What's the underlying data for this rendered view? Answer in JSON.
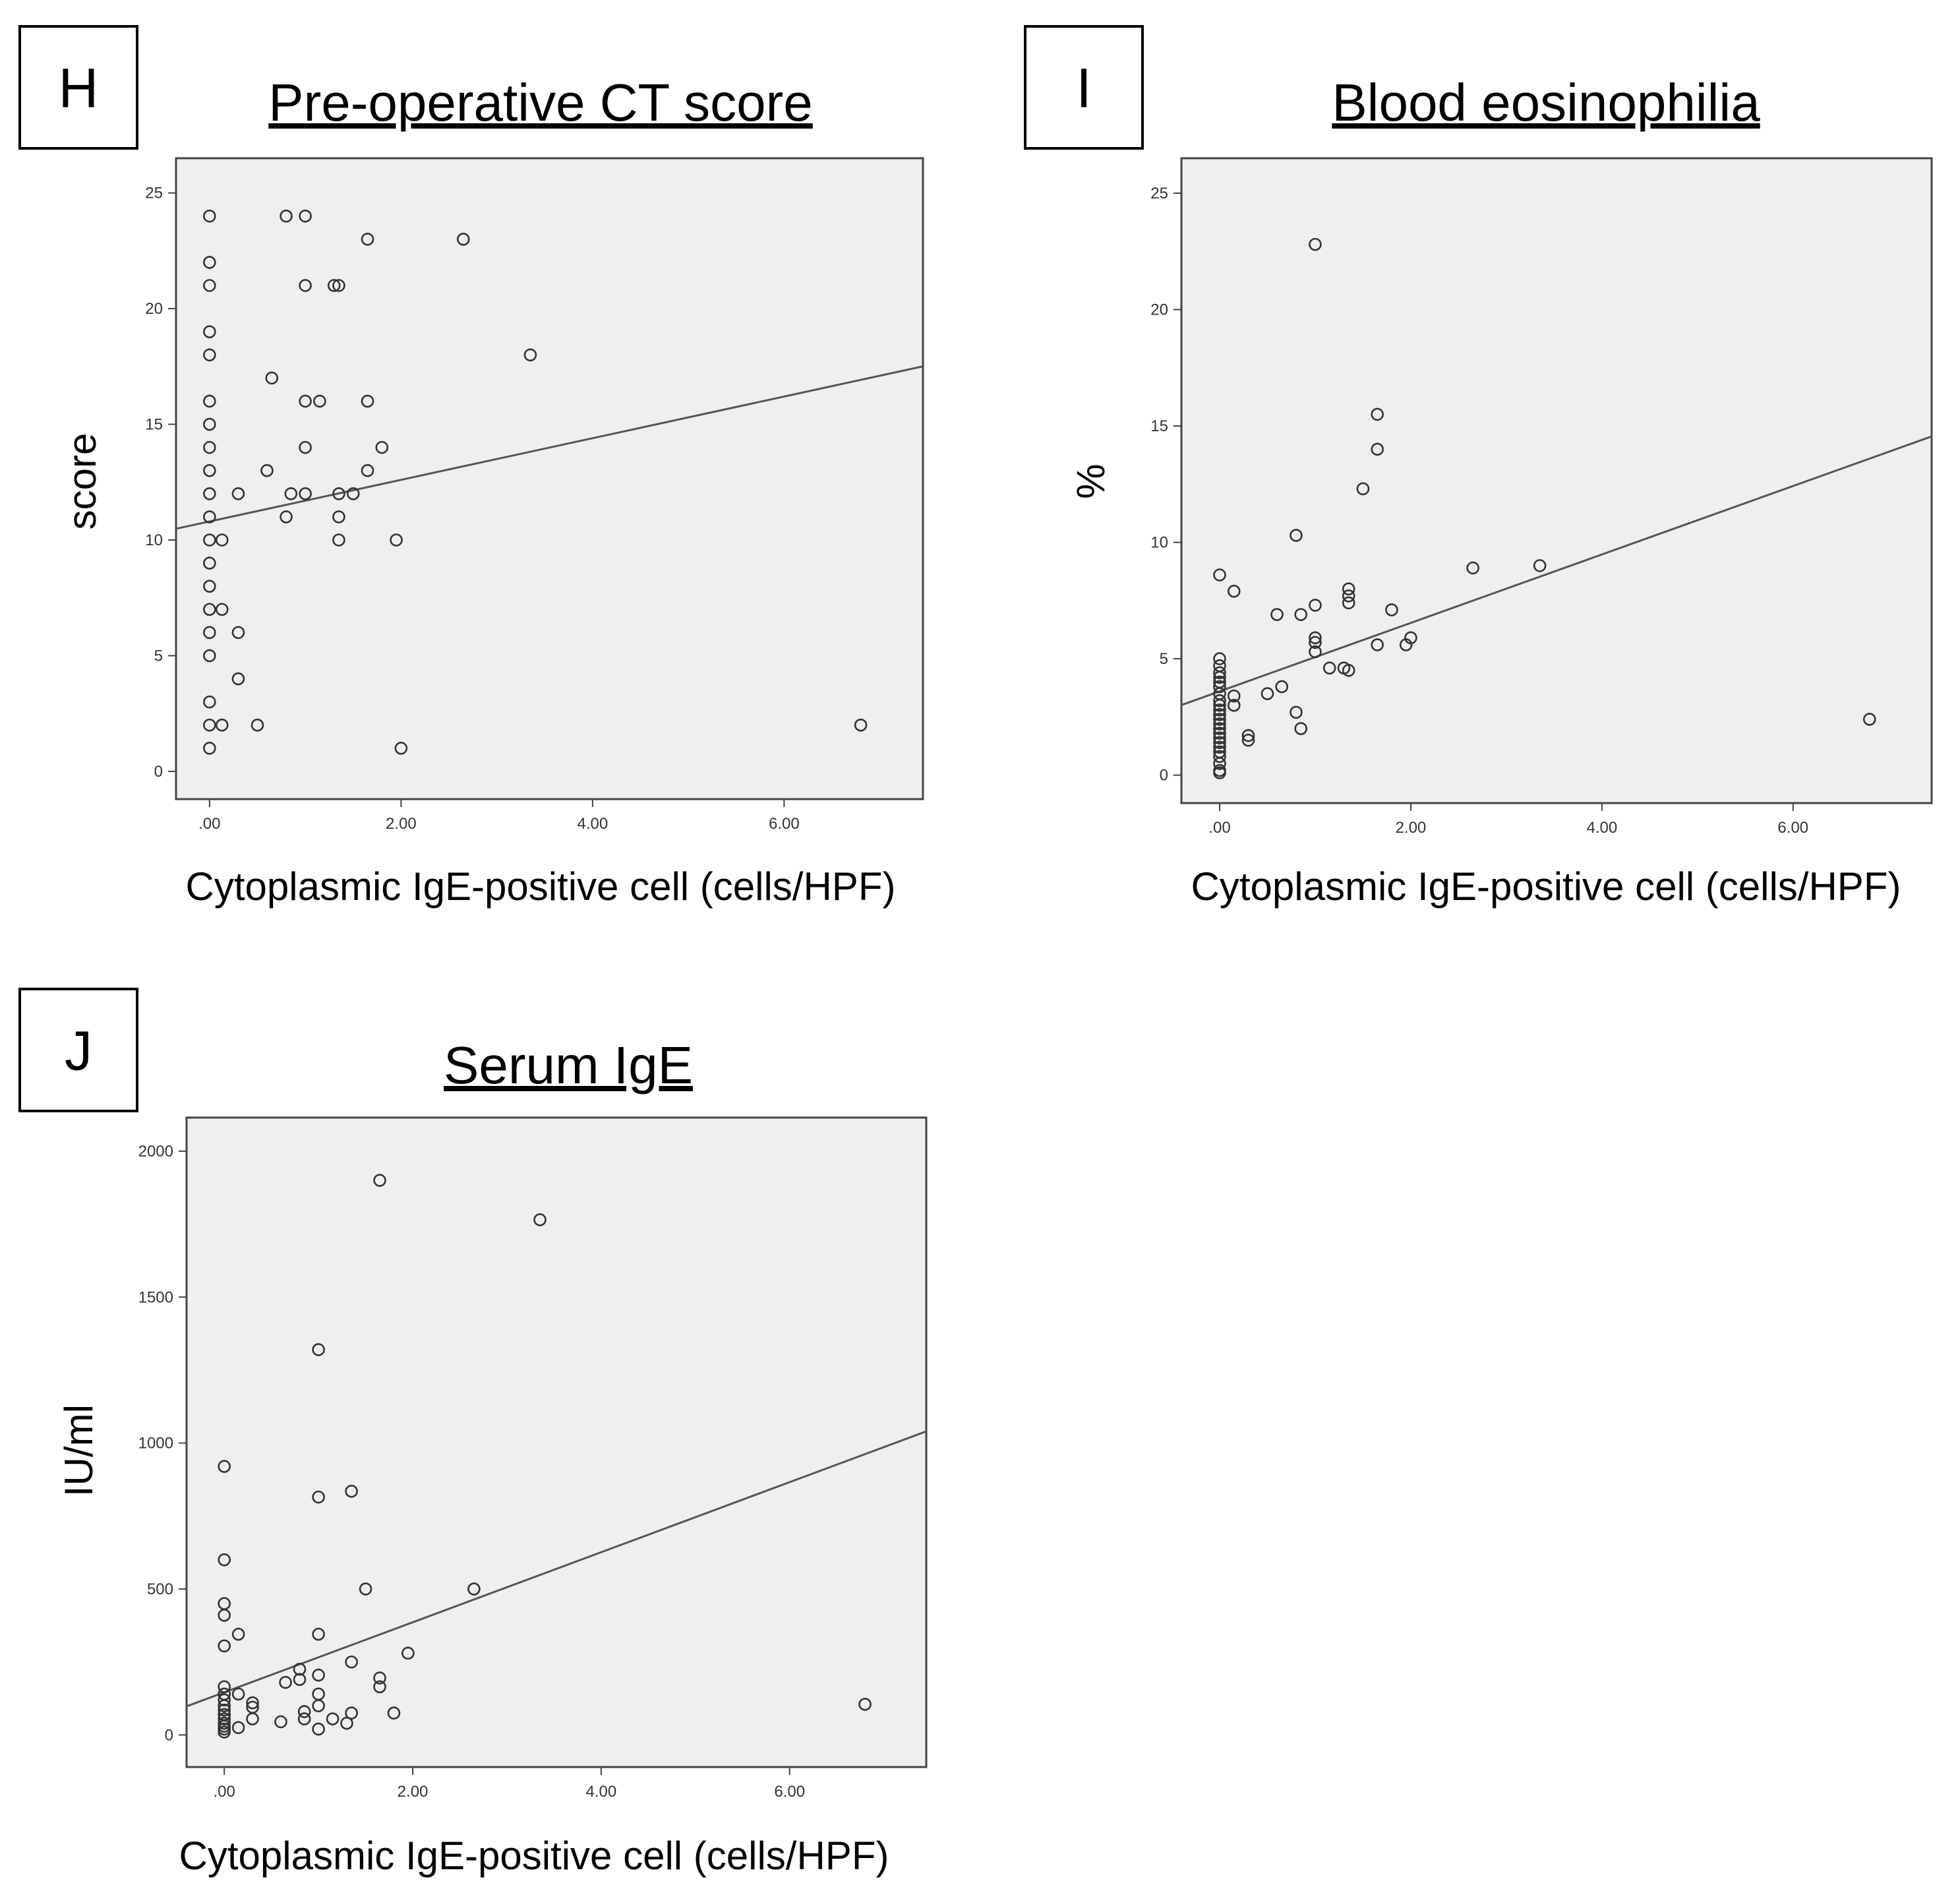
{
  "chart_data": [
    {
      "panel": "H",
      "type": "scatter",
      "title": "Pre-operative CT score",
      "xlabel": "Cytoplasmic IgE-positive cell (cells/HPF)",
      "ylabel": "score",
      "xlim": [
        -0.35,
        7.45
      ],
      "ylim": [
        -1.2,
        26.5
      ],
      "xticks": [
        0,
        2,
        4,
        6
      ],
      "xtick_labels": [
        ".00",
        "2.00",
        "4.00",
        "6.00"
      ],
      "yticks": [
        0,
        5,
        10,
        15,
        20,
        25
      ],
      "ytick_labels": [
        "0",
        "5",
        "10",
        "15",
        "20",
        "25"
      ],
      "fit_line": {
        "intercept": 10.8,
        "slope": 0.9
      },
      "points": [
        [
          0,
          24
        ],
        [
          0,
          22
        ],
        [
          0,
          21
        ],
        [
          0,
          19
        ],
        [
          0,
          18
        ],
        [
          0,
          16
        ],
        [
          0,
          15
        ],
        [
          0,
          14
        ],
        [
          0,
          13
        ],
        [
          0,
          12
        ],
        [
          0,
          11
        ],
        [
          0,
          10
        ],
        [
          0,
          9
        ],
        [
          0,
          8
        ],
        [
          0,
          7
        ],
        [
          0,
          6
        ],
        [
          0,
          5
        ],
        [
          0,
          3
        ],
        [
          0,
          2
        ],
        [
          0,
          1
        ],
        [
          0.13,
          10
        ],
        [
          0.13,
          7
        ],
        [
          0.13,
          2
        ],
        [
          0.3,
          12
        ],
        [
          0.3,
          6
        ],
        [
          0.3,
          4
        ],
        [
          0.5,
          2
        ],
        [
          0.6,
          13
        ],
        [
          0.65,
          17
        ],
        [
          0.8,
          24
        ],
        [
          0.8,
          11
        ],
        [
          0.85,
          12
        ],
        [
          1.0,
          24
        ],
        [
          1.0,
          21
        ],
        [
          1.0,
          16
        ],
        [
          1.0,
          14
        ],
        [
          1.0,
          12
        ],
        [
          1.15,
          16
        ],
        [
          1.3,
          21
        ],
        [
          1.35,
          21
        ],
        [
          1.35,
          12
        ],
        [
          1.35,
          11
        ],
        [
          1.35,
          10
        ],
        [
          1.5,
          12
        ],
        [
          1.65,
          23
        ],
        [
          1.65,
          16
        ],
        [
          1.65,
          13
        ],
        [
          1.8,
          14
        ],
        [
          1.95,
          10
        ],
        [
          2.0,
          1
        ],
        [
          2.65,
          23
        ],
        [
          3.35,
          18
        ],
        [
          6.8,
          2
        ]
      ]
    },
    {
      "panel": "I",
      "type": "scatter",
      "title": "Blood eosinophilia",
      "xlabel": "Cytoplasmic IgE-positive cell (cells/HPF)",
      "ylabel": "%",
      "xlim": [
        -0.4,
        7.45
      ],
      "ylim": [
        -1.2,
        26.5
      ],
      "xticks": [
        0,
        2,
        4,
        6
      ],
      "xtick_labels": [
        ".00",
        "2.00",
        "4.00",
        "6.00"
      ],
      "yticks": [
        0,
        5,
        10,
        15,
        20,
        25
      ],
      "ytick_labels": [
        "0",
        "5",
        "10",
        "15",
        "20",
        "25"
      ],
      "fit_line": {
        "intercept": 3.6,
        "slope": 1.47
      },
      "points": [
        [
          0,
          8.6
        ],
        [
          0,
          5.0
        ],
        [
          0,
          4.7
        ],
        [
          0,
          4.4
        ],
        [
          0,
          4.2
        ],
        [
          0,
          4.0
        ],
        [
          0,
          3.8
        ],
        [
          0,
          3.5
        ],
        [
          0,
          3.2
        ],
        [
          0,
          3.0
        ],
        [
          0,
          2.8
        ],
        [
          0,
          2.6
        ],
        [
          0,
          2.4
        ],
        [
          0,
          2.2
        ],
        [
          0,
          2.0
        ],
        [
          0,
          1.8
        ],
        [
          0,
          1.6
        ],
        [
          0,
          1.4
        ],
        [
          0,
          1.2
        ],
        [
          0,
          1.0
        ],
        [
          0,
          0.8
        ],
        [
          0,
          0.5
        ],
        [
          0,
          0.2
        ],
        [
          0,
          0.1
        ],
        [
          0.15,
          7.9
        ],
        [
          0.15,
          3.4
        ],
        [
          0.15,
          3.0
        ],
        [
          0.3,
          1.7
        ],
        [
          0.3,
          1.5
        ],
        [
          0.5,
          3.5
        ],
        [
          0.6,
          6.9
        ],
        [
          0.65,
          3.8
        ],
        [
          0.8,
          10.3
        ],
        [
          0.8,
          2.7
        ],
        [
          0.85,
          6.9
        ],
        [
          0.85,
          2.0
        ],
        [
          1.0,
          22.8
        ],
        [
          1.0,
          7.3
        ],
        [
          1.0,
          5.9
        ],
        [
          1.0,
          5.7
        ],
        [
          1.0,
          5.3
        ],
        [
          1.15,
          4.6
        ],
        [
          1.3,
          4.6
        ],
        [
          1.35,
          8.0
        ],
        [
          1.35,
          7.7
        ],
        [
          1.35,
          7.4
        ],
        [
          1.35,
          4.5
        ],
        [
          1.5,
          12.3
        ],
        [
          1.65,
          15.5
        ],
        [
          1.65,
          14.0
        ],
        [
          1.65,
          5.6
        ],
        [
          1.8,
          7.1
        ],
        [
          1.95,
          5.6
        ],
        [
          2.0,
          5.9
        ],
        [
          2.65,
          8.9
        ],
        [
          3.35,
          9.0
        ],
        [
          6.8,
          2.4
        ]
      ]
    },
    {
      "panel": "J",
      "type": "scatter",
      "title": "Serum IgE",
      "xlabel": "Cytoplasmic IgE-positive cell (cells/HPF)",
      "ylabel": "IU/ml",
      "xlim": [
        -0.4,
        7.45
      ],
      "ylim": [
        -110,
        2115
      ],
      "xticks": [
        0,
        2,
        4,
        6
      ],
      "xtick_labels": [
        ".00",
        "2.00",
        "4.00",
        "6.00"
      ],
      "yticks": [
        0,
        500,
        1000,
        1500,
        2000
      ],
      "ytick_labels": [
        "0",
        "500",
        "1000",
        "1500",
        "2000"
      ],
      "fit_line": {
        "intercept": 146,
        "slope": 120
      },
      "points": [
        [
          0,
          920
        ],
        [
          0,
          600
        ],
        [
          0,
          450
        ],
        [
          0,
          410
        ],
        [
          0,
          305
        ],
        [
          0,
          165
        ],
        [
          0,
          140
        ],
        [
          0,
          120
        ],
        [
          0,
          100
        ],
        [
          0,
          85
        ],
        [
          0,
          70
        ],
        [
          0,
          55
        ],
        [
          0,
          40
        ],
        [
          0,
          30
        ],
        [
          0,
          20
        ],
        [
          0,
          10
        ],
        [
          0.15,
          345
        ],
        [
          0.15,
          140
        ],
        [
          0.15,
          25
        ],
        [
          0.3,
          110
        ],
        [
          0.3,
          95
        ],
        [
          0.3,
          55
        ],
        [
          0.6,
          45
        ],
        [
          0.65,
          180
        ],
        [
          0.8,
          225
        ],
        [
          0.8,
          190
        ],
        [
          0.85,
          80
        ],
        [
          0.85,
          55
        ],
        [
          1.0,
          1320
        ],
        [
          1.0,
          815
        ],
        [
          1.0,
          345
        ],
        [
          1.0,
          205
        ],
        [
          1.0,
          140
        ],
        [
          1.0,
          100
        ],
        [
          1.0,
          20
        ],
        [
          1.15,
          55
        ],
        [
          1.3,
          40
        ],
        [
          1.35,
          835
        ],
        [
          1.35,
          250
        ],
        [
          1.35,
          75
        ],
        [
          1.5,
          500
        ],
        [
          1.65,
          1900
        ],
        [
          1.65,
          195
        ],
        [
          1.65,
          165
        ],
        [
          1.8,
          75
        ],
        [
          1.95,
          280
        ],
        [
          2.65,
          500
        ],
        [
          3.35,
          1765
        ],
        [
          6.8,
          105
        ]
      ]
    }
  ]
}
